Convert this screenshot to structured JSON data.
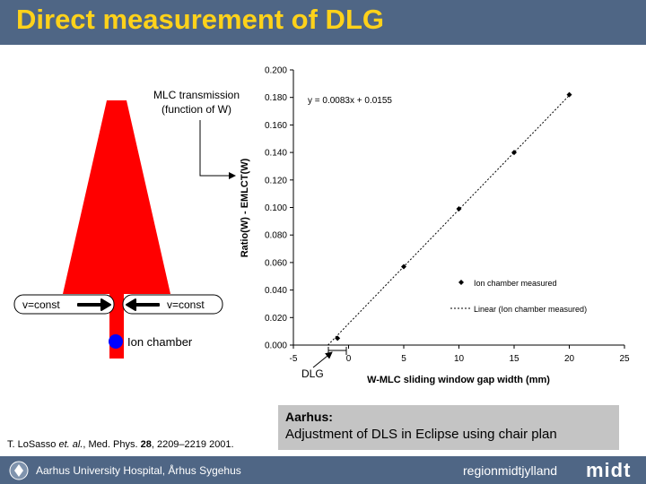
{
  "slide": {
    "title": "Direct measurement of DLG",
    "mlc_label_line1": "MLC transmission",
    "mlc_label_line2": "(function of W)",
    "v_left": "v=const",
    "v_right": "v=const",
    "ion_chamber_label": "Ion chamber",
    "dlg_label": "DLG",
    "aarhus_heading": "Aarhus:",
    "aarhus_body": "Adjustment of DLS in Eclipse using chair plan",
    "reference": {
      "authors": "T. LoSasso ",
      "etal": "et. al.",
      "journal": ", Med. Phys. ",
      "volume": "28",
      "pages": ", 2209–2219 2001."
    },
    "footer_left": "Aarhus University Hospital, Århus Sygehus",
    "footer_right": "regionmidtjylland",
    "footer_logo": "midt",
    "colors": {
      "title_bar": "#4f6685",
      "title_text": "#ffd21a",
      "beam": "#ff0000",
      "ion_chamber": "#0000ff",
      "info_box": "#c4c4c4"
    }
  },
  "chart_data": {
    "type": "scatter",
    "title": "",
    "xlabel": "W-MLC sliding window gap width (mm)",
    "ylabel": "Ratio(W) - EMLCT(W)",
    "xlim": [
      -5,
      25
    ],
    "ylim": [
      0,
      0.2
    ],
    "xticks": [
      -5,
      0,
      5,
      10,
      15,
      20,
      25
    ],
    "yticks": [
      "0.000",
      "0.020",
      "0.040",
      "0.060",
      "0.080",
      "0.100",
      "0.120",
      "0.140",
      "0.160",
      "0.180",
      "0.200"
    ],
    "equation": "y = 0.0083x + 0.0155",
    "grid": false,
    "legend_position": "bottom-right",
    "series": [
      {
        "name": "Ion chamber measured",
        "style": "markers",
        "x": [
          -1,
          5,
          10,
          15,
          20
        ],
        "y": [
          0.005,
          0.057,
          0.099,
          0.14,
          0.182
        ]
      },
      {
        "name": "Linear (Ion chamber measured)",
        "style": "dotted-line",
        "slope": 0.0083,
        "intercept": 0.0155,
        "x_range": [
          -1.87,
          20
        ]
      }
    ]
  }
}
